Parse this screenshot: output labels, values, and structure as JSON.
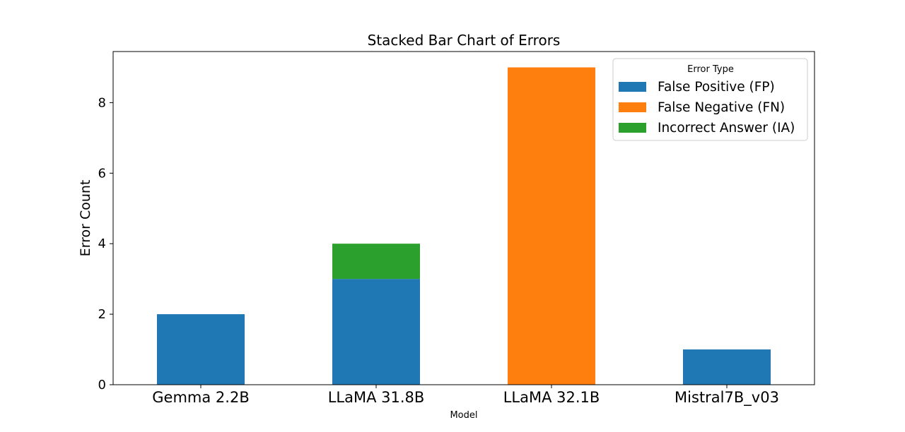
{
  "chart_data": {
    "type": "bar",
    "stacked": true,
    "title": "Stacked Bar Chart of Errors",
    "xlabel": "Model",
    "ylabel": "Error Count",
    "categories": [
      "Gemma 2.2B",
      "LLaMA 31.8B",
      "LLaMA 32.1B",
      "Mistral7B_v03"
    ],
    "series": [
      {
        "name": "False Positive (FP)",
        "color": "#1f77b4",
        "values": [
          2,
          3,
          0,
          1
        ]
      },
      {
        "name": "False Negative (FN)",
        "color": "#ff7f0e",
        "values": [
          0,
          0,
          9,
          0
        ]
      },
      {
        "name": "Incorrect Answer (IA)",
        "color": "#2ca02c",
        "values": [
          0,
          1,
          0,
          0
        ]
      }
    ],
    "ylim": [
      0,
      9.45
    ],
    "yticks": [
      0,
      2,
      4,
      6,
      8
    ],
    "grid": false,
    "legend": {
      "title": "Error Type",
      "placement": "top-right"
    }
  }
}
